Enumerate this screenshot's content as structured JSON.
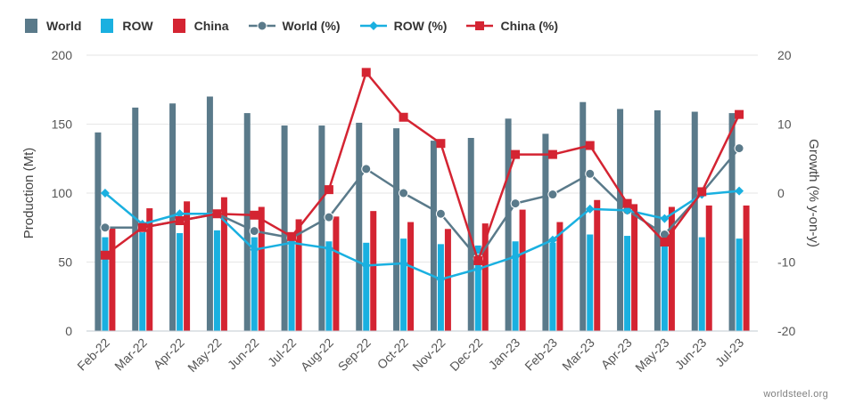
{
  "legend": {
    "items": [
      {
        "label": "World",
        "kind": "bar",
        "color": "#5a7a8a"
      },
      {
        "label": "ROW",
        "kind": "bar",
        "color": "#1ab0e0"
      },
      {
        "label": "China",
        "kind": "bar",
        "color": "#d42432"
      },
      {
        "label": "World (%)",
        "kind": "line",
        "marker": "circle",
        "color": "#5a7a8a"
      },
      {
        "label": "ROW (%)",
        "kind": "line",
        "marker": "diamond",
        "color": "#1ab0e0"
      },
      {
        "label": "China (%)",
        "kind": "line",
        "marker": "square",
        "color": "#d42432"
      }
    ]
  },
  "credit": "worldsteel.org",
  "chart_data": {
    "type": "bar",
    "categories": [
      "Feb-22",
      "Mar-22",
      "Apr-22",
      "May-22",
      "Jun-22",
      "Jul-22",
      "Aug-22",
      "Sep-22",
      "Oct-22",
      "Nov-22",
      "Dec-22",
      "Jan-23",
      "Feb-23",
      "Mar-23",
      "Apr-23",
      "May-23",
      "Jun-23",
      "Jul-23"
    ],
    "ylabel": "Production (Mt)",
    "ylim": [
      0,
      200
    ],
    "yticks": [
      0,
      50,
      100,
      150,
      200
    ],
    "y2label": "Growth (% y-on-y)",
    "y2lim": [
      -20,
      20
    ],
    "y2ticks": [
      -20,
      -10,
      0,
      10,
      20
    ],
    "grid": true,
    "legend_position": "top-left",
    "series": [
      {
        "name": "World",
        "type": "bar",
        "axis": "left",
        "color": "#5a7a8a",
        "values": [
          144,
          162,
          165,
          170,
          158,
          149,
          149,
          151,
          147,
          138,
          140,
          154,
          143,
          166,
          161,
          160,
          159,
          158
        ]
      },
      {
        "name": "ROW",
        "type": "bar",
        "axis": "left",
        "color": "#1ab0e0",
        "values": [
          68,
          73,
          71,
          73,
          68,
          66,
          65,
          64,
          67,
          63,
          62,
          65,
          64,
          70,
          69,
          65,
          68,
          67
        ]
      },
      {
        "name": "China",
        "type": "bar",
        "axis": "left",
        "color": "#d42432",
        "values": [
          75,
          89,
          94,
          97,
          90,
          81,
          83,
          87,
          79,
          74,
          78,
          88,
          79,
          95,
          92,
          90,
          91,
          91
        ]
      },
      {
        "name": "World (%)",
        "type": "line",
        "axis": "right",
        "color": "#5a7a8a",
        "marker": "circle",
        "values": [
          -5,
          -5,
          -4,
          -3,
          -5.5,
          -6.5,
          -3.5,
          3.5,
          0,
          -3,
          -9.5,
          -1.5,
          -0.2,
          2.8,
          -2.5,
          -6,
          0,
          6.5
        ]
      },
      {
        "name": "ROW (%)",
        "type": "line",
        "axis": "right",
        "color": "#1ab0e0",
        "marker": "diamond",
        "values": [
          0,
          -4.5,
          -3,
          -3,
          -8.2,
          -7.2,
          -8,
          -10.5,
          -10.2,
          -12.5,
          -11,
          -9.2,
          -6.8,
          -2.3,
          -2.5,
          -3.7,
          -0.2,
          0.3
        ]
      },
      {
        "name": "China (%)",
        "type": "line",
        "axis": "right",
        "color": "#d42432",
        "marker": "square",
        "values": [
          -9,
          -5,
          -4,
          -3,
          -3.2,
          -6.3,
          0.5,
          17.5,
          11,
          7.2,
          -9.8,
          5.6,
          5.6,
          6.9,
          -1.5,
          -7.1,
          0.2,
          11.4
        ]
      }
    ]
  }
}
